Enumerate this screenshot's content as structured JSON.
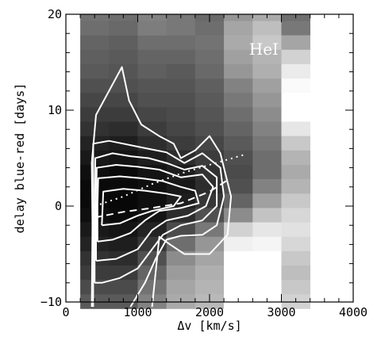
{
  "chart_data": {
    "type": "heatmap",
    "panel_label": "HeI",
    "xlabel": "Δv [km/s]",
    "ylabel": "delay blue-red [days]",
    "xlim": [
      0,
      4000
    ],
    "ylim": [
      -10,
      20
    ],
    "x_ticks": [
      {
        "value": 0,
        "label": "0"
      },
      {
        "value": 1000,
        "label": "1000"
      },
      {
        "value": 2000,
        "label": "2000"
      },
      {
        "value": 3000,
        "label": "3000"
      },
      {
        "value": 4000,
        "label": "4000"
      }
    ],
    "y_ticks": [
      {
        "value": -10,
        "label": "−10"
      },
      {
        "value": 0,
        "label": "0"
      },
      {
        "value": 10,
        "label": "10"
      },
      {
        "value": 20,
        "label": "20"
      }
    ],
    "x_bin_edges": [
      200,
      600,
      1000,
      1400,
      1800,
      2200,
      2600,
      3000,
      3400
    ],
    "y_bin_edges": [
      -10.7,
      -9.2,
      -7.7,
      -6.2,
      -4.7,
      -3.2,
      -1.7,
      -0.2,
      1.3,
      2.8,
      4.3,
      5.8,
      7.3,
      8.8,
      10.3,
      11.8,
      13.3,
      14.8,
      16.3,
      17.8,
      19.3,
      20.0
    ],
    "grid_grey_rows_top_to_bottom": [
      [
        115,
        110,
        130,
        120,
        105,
        150,
        170,
        110
      ],
      [
        110,
        105,
        125,
        120,
        110,
        165,
        190,
        120
      ],
      [
        100,
        95,
        110,
        110,
        115,
        170,
        200,
        165
      ],
      [
        95,
        90,
        100,
        100,
        110,
        160,
        180,
        210
      ],
      [
        90,
        85,
        95,
        90,
        105,
        150,
        175,
        235
      ],
      [
        80,
        80,
        85,
        85,
        95,
        130,
        160,
        250
      ],
      [
        70,
        70,
        80,
        80,
        90,
        120,
        150,
        255
      ],
      [
        60,
        60,
        70,
        75,
        85,
        110,
        140,
        255
      ],
      [
        50,
        45,
        60,
        70,
        80,
        100,
        130,
        230
      ],
      [
        35,
        30,
        45,
        60,
        70,
        90,
        120,
        200
      ],
      [
        25,
        20,
        30,
        45,
        60,
        80,
        110,
        180
      ],
      [
        15,
        10,
        20,
        30,
        50,
        75,
        110,
        170
      ],
      [
        10,
        10,
        15,
        25,
        45,
        80,
        130,
        180
      ],
      [
        10,
        8,
        15,
        30,
        55,
        100,
        160,
        200
      ],
      [
        15,
        10,
        20,
        45,
        80,
        140,
        195,
        215
      ],
      [
        25,
        20,
        35,
        75,
        120,
        210,
        230,
        225
      ],
      [
        35,
        30,
        55,
        110,
        150,
        240,
        245,
        215
      ],
      [
        50,
        45,
        80,
        140,
        165,
        255,
        255,
        200
      ],
      [
        60,
        60,
        100,
        155,
        175,
        255,
        255,
        190
      ],
      [
        75,
        75,
        115,
        165,
        180,
        255,
        255,
        200
      ],
      [
        90,
        90,
        130,
        170,
        185,
        255,
        255,
        210
      ]
    ],
    "contours": [
      [
        [
          360,
          -10.5
        ],
        [
          370,
          -2
        ],
        [
          360,
          4.5
        ],
        [
          420,
          9.5
        ],
        [
          600,
          12
        ],
        [
          780,
          14.5
        ],
        [
          880,
          11
        ],
        [
          1050,
          8.5
        ],
        [
          1300,
          7.3
        ],
        [
          1500,
          6.5
        ],
        [
          1600,
          5
        ],
        [
          1800,
          5.8
        ],
        [
          2000,
          7.3
        ],
        [
          2150,
          5.5
        ],
        [
          2300,
          1
        ],
        [
          2250,
          -3
        ],
        [
          2000,
          -5
        ],
        [
          1650,
          -5
        ],
        [
          1450,
          -4
        ],
        [
          1300,
          -3.2
        ],
        [
          1200,
          -10.5
        ]
      ],
      [
        [
          380,
          -10.5
        ],
        [
          380,
          -3
        ],
        [
          380,
          6.5
        ],
        [
          600,
          6.8
        ],
        [
          800,
          6.5
        ],
        [
          1000,
          6.2
        ],
        [
          1200,
          5.9
        ],
        [
          1400,
          5.6
        ],
        [
          1650,
          4.5
        ],
        [
          1900,
          5.5
        ],
        [
          2150,
          4
        ],
        [
          2200,
          1
        ],
        [
          2100,
          -2
        ],
        [
          1900,
          -3
        ],
        [
          1600,
          -3.1
        ],
        [
          1400,
          -3.5
        ],
        [
          1250,
          -5.5
        ],
        [
          1100,
          -8
        ],
        [
          900,
          -10.5
        ]
      ],
      [
        [
          400,
          -8
        ],
        [
          400,
          0
        ],
        [
          410,
          5
        ],
        [
          650,
          5.5
        ],
        [
          900,
          5.2
        ],
        [
          1150,
          5
        ],
        [
          1400,
          4.5
        ],
        [
          1650,
          3.8
        ],
        [
          1900,
          4.2
        ],
        [
          2100,
          3
        ],
        [
          2100,
          0
        ],
        [
          1900,
          -1.5
        ],
        [
          1600,
          -2
        ],
        [
          1350,
          -3
        ],
        [
          1200,
          -4.5
        ],
        [
          1000,
          -6.5
        ],
        [
          750,
          -7.5
        ],
        [
          500,
          -8
        ],
        [
          400,
          -8
        ]
      ],
      [
        [
          420,
          -5.7
        ],
        [
          420,
          0
        ],
        [
          430,
          4
        ],
        [
          700,
          4.3
        ],
        [
          1000,
          4.1
        ],
        [
          1300,
          3.8
        ],
        [
          1600,
          3
        ],
        [
          1900,
          3.3
        ],
        [
          2050,
          2
        ],
        [
          1950,
          0
        ],
        [
          1700,
          -1
        ],
        [
          1400,
          -1.5
        ],
        [
          1200,
          -2.5
        ],
        [
          1000,
          -4.5
        ],
        [
          700,
          -5.5
        ],
        [
          420,
          -5.7
        ]
      ],
      [
        [
          440,
          -3.7
        ],
        [
          440,
          0
        ],
        [
          450,
          2.9
        ],
        [
          750,
          3.1
        ],
        [
          1050,
          2.9
        ],
        [
          1350,
          2.6
        ],
        [
          1600,
          2
        ],
        [
          1800,
          1.6
        ],
        [
          1850,
          0.3
        ],
        [
          1600,
          -0.2
        ],
        [
          1300,
          -0.5
        ],
        [
          1100,
          -1.5
        ],
        [
          900,
          -2.8
        ],
        [
          650,
          -3.5
        ],
        [
          440,
          -3.7
        ]
      ],
      [
        [
          500,
          -2
        ],
        [
          520,
          1.5
        ],
        [
          800,
          1.8
        ],
        [
          1100,
          1.6
        ],
        [
          1400,
          1.3
        ],
        [
          1600,
          1
        ],
        [
          1500,
          0
        ],
        [
          1200,
          -0.5
        ],
        [
          1000,
          -1
        ],
        [
          750,
          -1.8
        ],
        [
          500,
          -2
        ]
      ]
    ],
    "dashed_line": [
      [
        400,
        -1.2
      ],
      [
        800,
        -0.6
      ],
      [
        1200,
        -0.2
      ],
      [
        1600,
        0.3
      ],
      [
        2000,
        1.5
      ],
      [
        2250,
        2.7
      ]
    ],
    "dotted_line": [
      [
        400,
        0
      ],
      [
        800,
        1
      ],
      [
        1200,
        2.3
      ],
      [
        1600,
        3.4
      ],
      [
        2000,
        4.3
      ],
      [
        2500,
        5.4
      ]
    ]
  }
}
